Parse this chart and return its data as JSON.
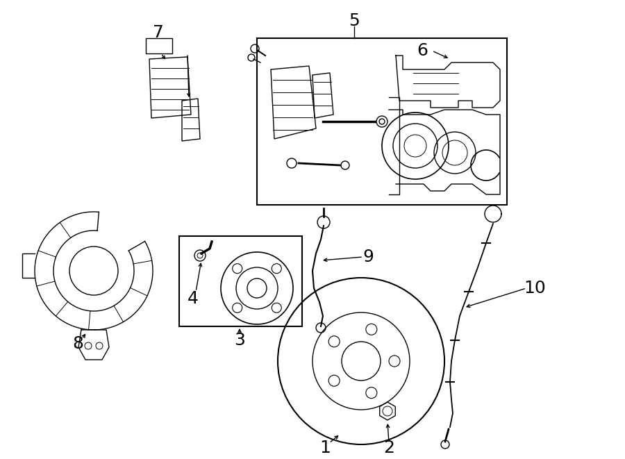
{
  "bg_color": "#ffffff",
  "line_color": "#000000",
  "fig_width": 9.0,
  "fig_height": 6.61,
  "dpi": 100,
  "lw": 1.0
}
